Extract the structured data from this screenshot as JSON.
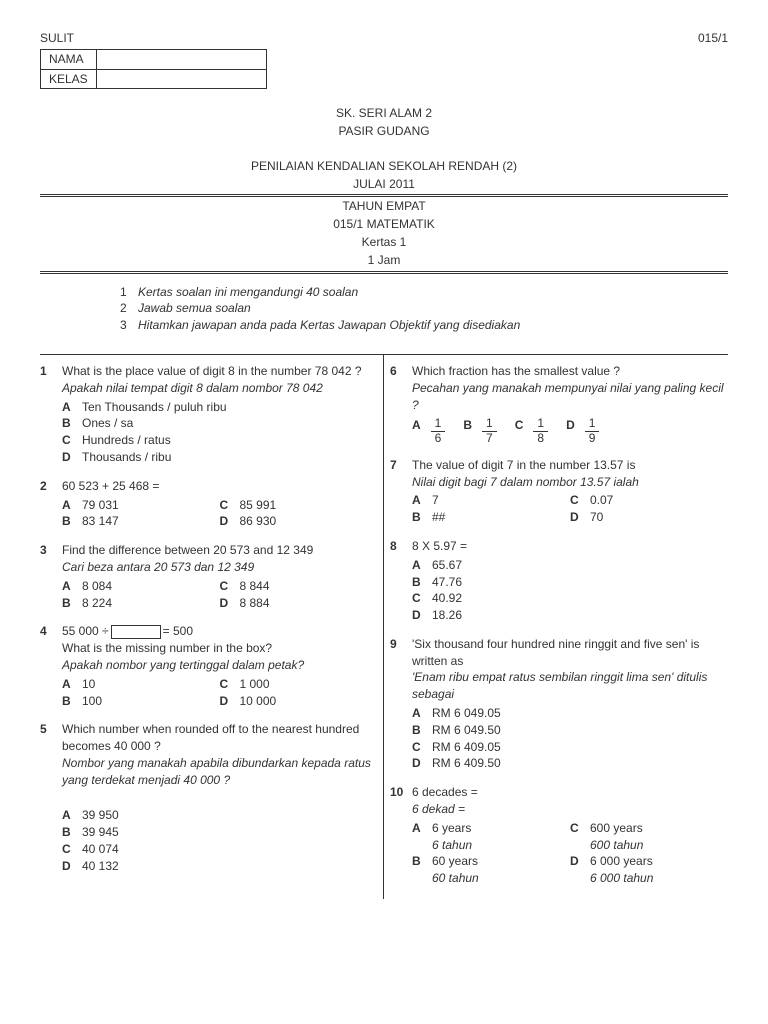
{
  "header": {
    "left": "SULIT",
    "right": "015/1",
    "nama_label": "NAMA",
    "kelas_label": "KELAS",
    "school1": "SK. SERI ALAM 2",
    "school2": "PASIR GUDANG",
    "title": "PENILAIAN KENDALIAN SEKOLAH RENDAH (2)",
    "month": "JULAI 2011",
    "year": "TAHUN EMPAT",
    "subject": "015/1 MATEMATIK",
    "paper": "Kertas 1",
    "duration": "1 Jam"
  },
  "instructions": {
    "i1": "Kertas soalan ini mengandungi 40 soalan",
    "i2": "Jawab semua soalan",
    "i3": "Hitamkan jawapan anda pada Kertas Jawapan Objektif yang disediakan"
  },
  "q1": {
    "n": "1",
    "en": "What is the place  value of digit 8 in the number 78 042 ?",
    "my": "Apakah nilai tempat digit 8 dalam nombor 78 042",
    "a": "Ten Thousands / puluh ribu",
    "b": "Ones / sa",
    "c": "Hundreds / ratus",
    "d": "Thousands / ribu"
  },
  "q2": {
    "n": "2",
    "text": "60 523 + 25 468 =",
    "a": "79 031",
    "c": "85 991",
    "b": "83 147",
    "d": "86 930"
  },
  "q3": {
    "n": "3",
    "en": "Find the difference between 20 573 and 12 349",
    "my": "Cari beza antara 20 573 dan 12 349",
    "a": "8 084",
    "c": "8 844",
    "b": "8 224",
    "d": "8 884"
  },
  "q4": {
    "n": "4",
    "text1": "55 000 ÷",
    "text2": "= 500",
    "en": "What is the missing number in the box?",
    "my": "Apakah nombor yang tertinggal dalam petak?",
    "a": "10",
    "c": "1 000",
    "b": "100",
    "d": "10 000"
  },
  "q5": {
    "n": "5",
    "en": "Which number when rounded off to the nearest hundred becomes 40 000 ?",
    "my": "Nombor yang manakah apabila dibundarkan kepada ratus yang terdekat menjadi 40 000 ?",
    "a": "39 950",
    "b": "39 945",
    "c": "40 074",
    "d": "40 132"
  },
  "q6": {
    "n": "6",
    "en": "Which fraction has the smallest value ?",
    "my": "Pecahan yang manakah mempunyai nilai yang paling kecil ?",
    "fa_n": "1",
    "fa_d": "6",
    "fb_n": "1",
    "fb_d": "7",
    "fc_n": "1",
    "fc_d": "8",
    "fd_n": "1",
    "fd_d": "9"
  },
  "q7": {
    "n": "7",
    "en": "The value of digit 7 in the number 13.57 is",
    "my": "Nilai digit bagi 7 dalam nombor 13.57 ialah",
    "a": "7",
    "c": "0.07",
    "b": "##",
    "d": "70"
  },
  "q8": {
    "n": "8",
    "text": "8 X 5.97 =",
    "a": "65.67",
    "b": "47.76",
    "c": "40.92",
    "d": "18.26"
  },
  "q9": {
    "n": "9",
    "en": "'Six thousand four hundred nine ringgit and five sen' is written as",
    "my": "'Enam ribu empat ratus sembilan ringgit lima sen' ditulis sebagai",
    "a": "RM 6 049.05",
    "b": "RM 6 049.50",
    "c": "RM 6 409.05",
    "d": "RM 6 409.50"
  },
  "q10": {
    "n": "10",
    "en": "6 decades =",
    "my": "6 dekad =",
    "a": "6 years",
    "a2": "6 tahun",
    "c": "600 years",
    "c2": "600 tahun",
    "b": "60 years",
    "b2": "60 tahun",
    "d": "6 000 years",
    "d2": "6 000 tahun"
  },
  "letters": {
    "A": "A",
    "B": "B",
    "C": "C",
    "D": "D"
  },
  "nums": {
    "n1": "1",
    "n2": "2",
    "n3": "3"
  }
}
